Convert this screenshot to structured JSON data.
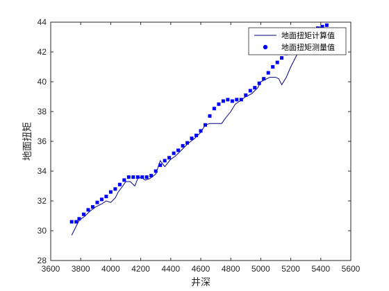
{
  "chart_data": {
    "type": "line+scatter",
    "title": "",
    "xlabel": "井深",
    "ylabel": "地面扭矩",
    "xlim": [
      3600,
      5600
    ],
    "ylim": [
      28,
      44
    ],
    "xticks": [
      "3600",
      "3800",
      "4000",
      "4200",
      "4400",
      "4600",
      "4800",
      "5000",
      "5200",
      "5400",
      "5600"
    ],
    "yticks": [
      "28",
      "30",
      "32",
      "34",
      "36",
      "38",
      "40",
      "42",
      "44"
    ],
    "grid": false,
    "legend_position": "top-right",
    "colors": {
      "line": "#00007f",
      "marker": "#0000ff",
      "axis": "#262626"
    },
    "series": [
      {
        "name": "地面扭矩计算值",
        "kind": "line",
        "x": [
          3740,
          3770,
          3790,
          3830,
          3860,
          3900,
          3940,
          3970,
          4000,
          4030,
          4050,
          4080,
          4100,
          4130,
          4160,
          4180,
          4200,
          4230,
          4260,
          4300,
          4330,
          4360,
          4400,
          4430,
          4460,
          4490,
          4520,
          4560,
          4600,
          4630,
          4660,
          4700,
          4740,
          4760,
          4800,
          4830,
          4860,
          4900,
          4940,
          4980,
          5000,
          5040,
          5060,
          5100,
          5120,
          5140,
          5170,
          5200,
          5230,
          5260,
          5300,
          5340,
          5370,
          5410
        ],
        "y": [
          29.7,
          30.3,
          30.7,
          31.0,
          31.3,
          31.6,
          31.8,
          32.0,
          31.9,
          32.2,
          32.6,
          33.0,
          33.3,
          33.3,
          33.0,
          33.5,
          33.6,
          33.4,
          33.5,
          33.8,
          34.7,
          34.3,
          34.8,
          35.0,
          35.3,
          35.6,
          35.9,
          36.2,
          36.6,
          37.1,
          37.2,
          37.2,
          37.2,
          37.5,
          38.0,
          38.5,
          38.7,
          39.0,
          39.2,
          39.6,
          40.0,
          40.2,
          40.3,
          40.3,
          40.2,
          39.8,
          40.3,
          41.0,
          41.6,
          42.2,
          42.6,
          43.0,
          43.4,
          43.8
        ]
      },
      {
        "name": "地面扭矩测量值",
        "kind": "scatter",
        "x": [
          3740,
          3770,
          3790,
          3820,
          3850,
          3880,
          3910,
          3940,
          3970,
          4000,
          4030,
          4060,
          4090,
          4120,
          4150,
          4180,
          4210,
          4240,
          4270,
          4300,
          4330,
          4360,
          4390,
          4420,
          4450,
          4480,
          4510,
          4540,
          4570,
          4600,
          4630,
          4660,
          4690,
          4720,
          4750,
          4780,
          4810,
          4840,
          4870,
          4900,
          4930,
          4960,
          4990,
          5020,
          5050,
          5080,
          5110,
          5140,
          5170,
          5200,
          5230,
          5260,
          5290,
          5320,
          5350,
          5380,
          5410,
          5440
        ],
        "y": [
          30.6,
          30.6,
          30.8,
          31.1,
          31.4,
          31.6,
          31.9,
          32.1,
          32.3,
          32.6,
          32.8,
          33.1,
          33.4,
          33.6,
          33.6,
          33.6,
          33.6,
          33.6,
          33.7,
          34.0,
          34.4,
          34.7,
          34.9,
          35.2,
          35.4,
          35.7,
          35.9,
          36.2,
          36.4,
          36.7,
          37.1,
          37.7,
          38.2,
          38.5,
          38.7,
          38.8,
          38.7,
          38.8,
          38.8,
          39.1,
          39.4,
          39.6,
          39.9,
          40.2,
          40.6,
          41.0,
          41.3,
          41.6,
          41.9,
          42.2,
          42.5,
          42.8,
          43.0,
          43.1,
          43.3,
          43.6,
          43.7,
          43.8
        ]
      }
    ]
  }
}
